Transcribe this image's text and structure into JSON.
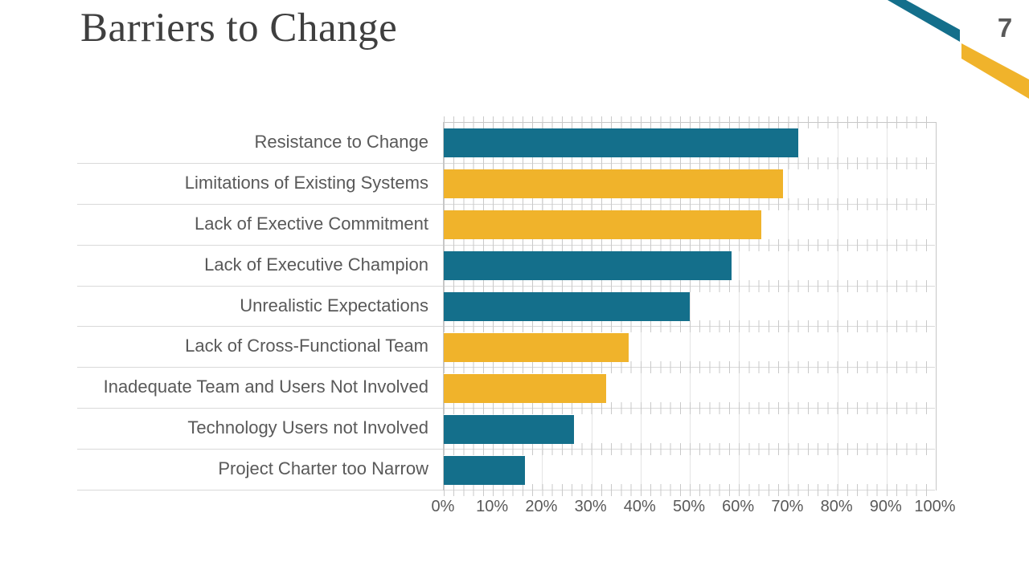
{
  "slide": {
    "title": "Barriers to Change",
    "page_number": "7",
    "accent_teal": "#146F8B",
    "accent_gold": "#F0B32B"
  },
  "chart_data": {
    "type": "bar",
    "orientation": "horizontal",
    "title": "",
    "xlabel": "",
    "ylabel": "",
    "xlim": [
      0,
      100
    ],
    "grid": true,
    "legend": false,
    "categories": [
      "Resistance to Change",
      "Limitations of Existing Systems",
      "Lack of Exective Commitment",
      "Lack of Executive Champion",
      "Unrealistic Expectations",
      "Lack of Cross-Functional Team",
      "Inadequate Team and Users Not Involved",
      "Technology Users not Involved",
      "Project Charter too Narrow"
    ],
    "values": [
      72,
      69,
      64.5,
      58.5,
      50,
      37.5,
      33,
      26.5,
      16.5
    ],
    "bar_colors": [
      "#146F8B",
      "#F0B32B",
      "#F0B32B",
      "#146F8B",
      "#146F8B",
      "#F0B32B",
      "#F0B32B",
      "#146F8B",
      "#146F8B"
    ],
    "x_ticks": [
      "0%",
      "10%",
      "20%",
      "30%",
      "40%",
      "50%",
      "60%",
      "70%",
      "80%",
      "90%",
      "100%"
    ]
  }
}
